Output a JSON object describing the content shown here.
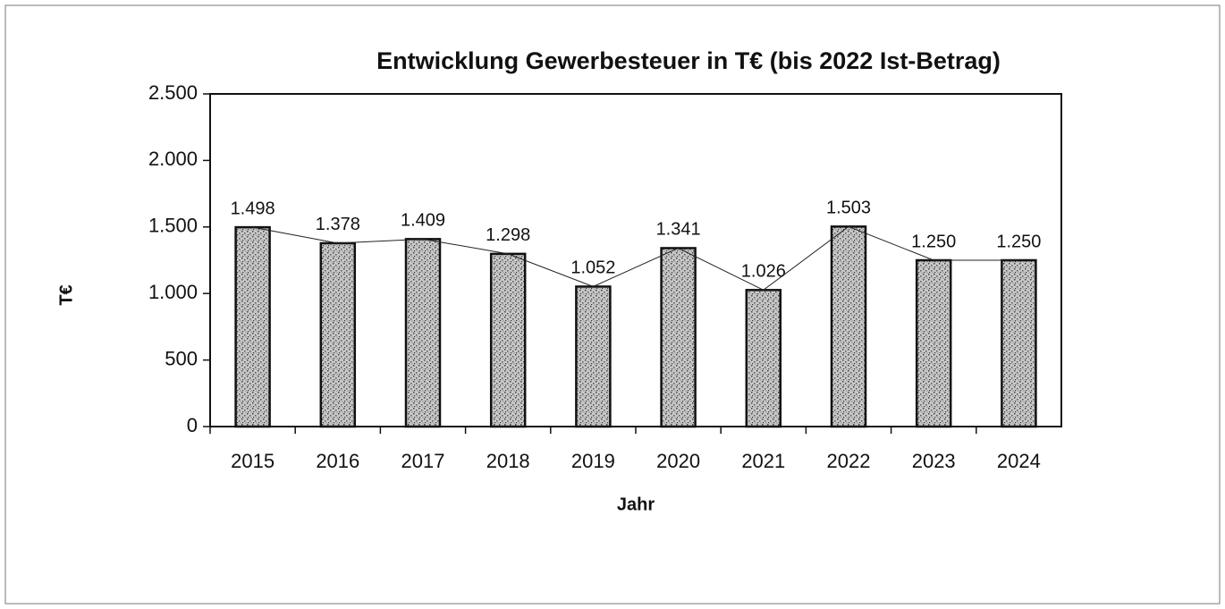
{
  "chart_data": {
    "type": "bar",
    "title": "Entwicklung Gewerbesteuer in T€ (bis 2022 Ist-Betrag)",
    "x_label": "Jahr",
    "y_label": "T€",
    "categories": [
      "2015",
      "2016",
      "2017",
      "2018",
      "2019",
      "2020",
      "2021",
      "2022",
      "2023",
      "2024"
    ],
    "values": [
      1498,
      1378,
      1409,
      1298,
      1052,
      1341,
      1026,
      1503,
      1250,
      1250
    ],
    "value_labels": [
      "1.498",
      "1.378",
      "1.409",
      "1.298",
      "1.052",
      "1.341",
      "1.026",
      "1.503",
      "1.250",
      "1.250"
    ],
    "color": "#9a9a9a",
    "connecting_line": true,
    "ylim": [
      0,
      2500
    ],
    "yticks": [
      0,
      500,
      {
        "value": 1000,
        "label": "1.000"
      },
      {
        "value": 1500,
        "label": "1.500"
      },
      {
        "value": 2000,
        "label": "2.000"
      },
      {
        "value": 2500,
        "label": "2.500"
      }
    ],
    "grid": false
  }
}
